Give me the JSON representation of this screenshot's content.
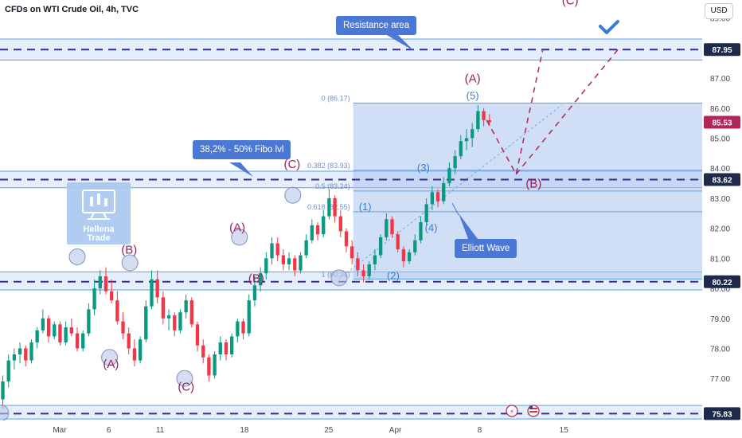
{
  "header": {
    "title": "CFDs on WTI Crude Oil, 4h, TVC",
    "currency": "USD"
  },
  "logo": {
    "line1": "Hellena",
    "line2": "Trade"
  },
  "callouts": {
    "resistance": "Resistance area",
    "fibo": "38,2% - 50% Fibo lvl",
    "elliott": "Elliott Wave"
  },
  "colors": {
    "up_candle": "#089981",
    "down_candle": "#f23645",
    "wave_purple": "#9c1e5e",
    "wave_blue": "#3a7bd5",
    "zone_fill": "#cfe0f7",
    "fib_fill": "#a9c4ef",
    "price_label_blue": "#1e2a4a",
    "price_label_red": "#b2265a"
  },
  "chart_data": {
    "type": "candlestick",
    "instrument": "CFDs on WTI Crude Oil",
    "timeframe": "4h",
    "source": "TVC",
    "y_axis": {
      "unit": "USD",
      "ylim": [
        75.6,
        89.6
      ],
      "ticks": [
        77.0,
        78.0,
        79.0,
        80.0,
        81.0,
        82.0,
        83.0,
        84.0,
        85.0,
        86.0,
        87.0,
        88.0,
        89.0
      ],
      "tick_labels": [
        "77.00",
        "78.00",
        "79.00",
        "80.00",
        "81.00",
        "82.00",
        "83.00",
        "84.00",
        "85.00",
        "86.00",
        "87.00",
        "88.00",
        "89.00"
      ]
    },
    "x_axis": {
      "tick_labels": [
        "Mar",
        "6",
        "11",
        "18",
        "25",
        "Apr",
        "8",
        "15"
      ],
      "tick_pos": [
        0.085,
        0.155,
        0.228,
        0.348,
        0.468,
        0.563,
        0.683,
        0.803
      ]
    },
    "price_labels": [
      {
        "value": 87.95,
        "text": "87.95",
        "kind": "level"
      },
      {
        "value": 85.53,
        "text": "85.53",
        "kind": "current"
      },
      {
        "value": 83.62,
        "text": "83.62",
        "kind": "level"
      },
      {
        "value": 80.22,
        "text": "80.22",
        "kind": "level"
      },
      {
        "value": 75.83,
        "text": "75.83",
        "kind": "level"
      }
    ],
    "dashed_levels": [
      87.95,
      83.62,
      80.22,
      75.83
    ],
    "zones": [
      {
        "from": 87.6,
        "to": 88.3
      },
      {
        "from": 83.35,
        "to": 83.9
      },
      {
        "from": 79.95,
        "to": 80.55
      },
      {
        "from": 75.65,
        "to": 76.1
      }
    ],
    "fib_levels": [
      {
        "ratio_label": "0 (86.17)",
        "value": 86.17
      },
      {
        "ratio_label": "0.382 (83.93)",
        "value": 83.93
      },
      {
        "ratio_label": "0.5 (83.24)",
        "value": 83.24
      },
      {
        "ratio_label": "0.618 (82.55)",
        "value": 82.55
      },
      {
        "ratio_label": "1 (80.31)",
        "value": 80.31
      }
    ],
    "waves": [
      {
        "label": "(C)",
        "t": 0.812,
        "price": 89.45,
        "style": "purple"
      },
      {
        "label": "(A)",
        "t": 0.673,
        "price": 86.85,
        "style": "purple"
      },
      {
        "label": "(5)",
        "t": 0.673,
        "price": 86.3,
        "style": "blue"
      },
      {
        "label": "(C)",
        "t": 0.416,
        "price": 84.0,
        "style": "purple"
      },
      {
        "label": "(3)",
        "t": 0.603,
        "price": 83.9,
        "style": "blue"
      },
      {
        "label": "(B)",
        "t": 0.76,
        "price": 83.35,
        "style": "purple"
      },
      {
        "label": "(1)",
        "t": 0.52,
        "price": 82.6,
        "style": "blue"
      },
      {
        "label": "(4)",
        "t": 0.614,
        "price": 81.9,
        "style": "blue"
      },
      {
        "label": "(A)",
        "t": 0.338,
        "price": 81.9,
        "style": "purple"
      },
      {
        "label": "(B)",
        "t": 0.184,
        "price": 81.15,
        "style": "purple"
      },
      {
        "label": "(2)",
        "t": 0.56,
        "price": 80.3,
        "style": "blue"
      },
      {
        "label": "(B)",
        "t": 0.365,
        "price": 80.2,
        "style": "purple"
      },
      {
        "label": "(A)",
        "t": 0.158,
        "price": 77.35,
        "style": "purple"
      },
      {
        "label": "(C)",
        "t": 0.265,
        "price": 76.6,
        "style": "purple"
      }
    ],
    "pivot_circles": [
      {
        "t": 0.11,
        "price": 81.05
      },
      {
        "t": 0.185,
        "price": 80.85
      },
      {
        "t": 0.156,
        "price": 77.7
      },
      {
        "t": 0.263,
        "price": 77.0
      },
      {
        "t": 0.341,
        "price": 81.7
      },
      {
        "t": 0.417,
        "price": 83.1
      },
      {
        "t": 0.483,
        "price": 80.35
      },
      {
        "t": 0.001,
        "price": 75.85
      }
    ],
    "projection_paths": [
      [
        {
          "t": 0.693,
          "price": 85.6
        },
        {
          "t": 0.735,
          "price": 83.8
        },
        {
          "t": 0.773,
          "price": 87.95
        }
      ],
      [
        {
          "t": 0.735,
          "price": 83.8
        },
        {
          "t": 0.88,
          "price": 87.95
        }
      ]
    ],
    "candles": [
      [
        76.3,
        77.1,
        76.0,
        76.9
      ],
      [
        76.9,
        77.8,
        76.7,
        77.6
      ],
      [
        77.6,
        78.0,
        77.3,
        77.8
      ],
      [
        77.8,
        78.2,
        77.5,
        78.0
      ],
      [
        78.0,
        78.1,
        77.4,
        77.6
      ],
      [
        77.6,
        78.3,
        77.5,
        78.2
      ],
      [
        78.2,
        78.7,
        78.0,
        78.6
      ],
      [
        78.6,
        79.3,
        78.5,
        79.0
      ],
      [
        79.0,
        79.1,
        78.2,
        78.4
      ],
      [
        78.4,
        78.9,
        78.3,
        78.8
      ],
      [
        78.8,
        78.9,
        78.1,
        78.2
      ],
      [
        78.2,
        78.9,
        78.1,
        78.7
      ],
      [
        78.7,
        79.0,
        78.4,
        78.5
      ],
      [
        78.5,
        78.7,
        77.9,
        78.0
      ],
      [
        78.0,
        78.6,
        77.9,
        78.5
      ],
      [
        78.5,
        79.5,
        78.4,
        79.3
      ],
      [
        79.3,
        80.3,
        79.1,
        80.0
      ],
      [
        80.0,
        80.6,
        79.8,
        80.4
      ],
      [
        80.4,
        80.7,
        79.8,
        79.9
      ],
      [
        79.9,
        80.3,
        79.5,
        79.6
      ],
      [
        79.6,
        79.9,
        78.8,
        78.9
      ],
      [
        78.9,
        79.2,
        78.3,
        78.5
      ],
      [
        78.5,
        78.7,
        77.8,
        78.0
      ],
      [
        78.0,
        78.3,
        77.4,
        77.6
      ],
      [
        77.6,
        78.4,
        77.5,
        78.3
      ],
      [
        78.3,
        79.6,
        78.2,
        79.4
      ],
      [
        79.4,
        80.6,
        79.3,
        80.3
      ],
      [
        80.3,
        80.6,
        79.5,
        79.7
      ],
      [
        79.7,
        79.9,
        78.8,
        79.0
      ],
      [
        79.0,
        79.3,
        78.6,
        79.1
      ],
      [
        79.1,
        79.2,
        78.4,
        78.6
      ],
      [
        78.6,
        79.3,
        78.5,
        79.2
      ],
      [
        79.2,
        79.8,
        79.0,
        79.6
      ],
      [
        79.6,
        79.7,
        78.7,
        78.8
      ],
      [
        78.8,
        78.9,
        77.9,
        78.1
      ],
      [
        78.1,
        78.3,
        77.5,
        77.7
      ],
      [
        77.7,
        77.8,
        76.9,
        77.1
      ],
      [
        77.1,
        77.9,
        77.0,
        77.8
      ],
      [
        77.8,
        78.4,
        77.6,
        78.2
      ],
      [
        78.2,
        78.3,
        77.6,
        77.8
      ],
      [
        77.8,
        78.5,
        77.7,
        78.4
      ],
      [
        78.4,
        79.0,
        78.2,
        78.9
      ],
      [
        78.9,
        79.0,
        78.3,
        78.5
      ],
      [
        78.5,
        79.8,
        78.4,
        79.6
      ],
      [
        79.6,
        80.4,
        79.4,
        80.1
      ],
      [
        80.1,
        80.7,
        79.9,
        80.5
      ],
      [
        80.5,
        81.2,
        80.3,
        81.0
      ],
      [
        81.0,
        81.7,
        80.8,
        81.5
      ],
      [
        81.5,
        81.7,
        80.9,
        81.1
      ],
      [
        81.1,
        81.3,
        80.6,
        80.8
      ],
      [
        80.8,
        81.2,
        80.6,
        81.0
      ],
      [
        81.0,
        81.1,
        80.4,
        80.6
      ],
      [
        80.6,
        81.2,
        80.5,
        81.1
      ],
      [
        81.1,
        81.8,
        81.0,
        81.6
      ],
      [
        81.6,
        82.3,
        81.5,
        82.1
      ],
      [
        82.1,
        82.2,
        81.6,
        81.8
      ],
      [
        81.8,
        82.6,
        81.7,
        82.4
      ],
      [
        82.4,
        83.3,
        82.3,
        83.0
      ],
      [
        83.0,
        83.1,
        82.2,
        82.4
      ],
      [
        82.4,
        82.6,
        81.7,
        81.9
      ],
      [
        81.9,
        82.0,
        81.2,
        81.4
      ],
      [
        81.4,
        81.6,
        80.8,
        81.0
      ],
      [
        81.0,
        81.2,
        80.4,
        80.6
      ],
      [
        80.6,
        80.8,
        80.2,
        80.4
      ],
      [
        80.4,
        80.9,
        80.3,
        80.8
      ],
      [
        80.8,
        81.3,
        80.6,
        81.1
      ],
      [
        81.1,
        81.8,
        81.0,
        81.7
      ],
      [
        81.7,
        82.5,
        81.6,
        82.3
      ],
      [
        82.3,
        82.4,
        81.7,
        81.8
      ],
      [
        81.8,
        81.9,
        81.2,
        81.3
      ],
      [
        81.3,
        81.4,
        80.7,
        80.9
      ],
      [
        80.9,
        81.3,
        80.8,
        81.2
      ],
      [
        81.2,
        81.8,
        81.1,
        81.6
      ],
      [
        81.6,
        82.4,
        81.5,
        82.2
      ],
      [
        82.2,
        83.0,
        82.1,
        82.8
      ],
      [
        82.8,
        83.4,
        82.6,
        83.2
      ],
      [
        83.2,
        83.3,
        82.7,
        82.9
      ],
      [
        82.9,
        83.7,
        82.8,
        83.5
      ],
      [
        83.5,
        84.2,
        83.4,
        84.0
      ],
      [
        84.0,
        84.6,
        83.8,
        84.4
      ],
      [
        84.4,
        85.1,
        84.3,
        84.9
      ],
      [
        84.9,
        85.3,
        84.6,
        85.0
      ],
      [
        85.0,
        85.5,
        84.7,
        85.3
      ],
      [
        85.3,
        86.1,
        85.2,
        85.9
      ],
      [
        85.9,
        86.0,
        85.4,
        85.6
      ],
      [
        85.6,
        85.8,
        85.4,
        85.53
      ]
    ]
  }
}
